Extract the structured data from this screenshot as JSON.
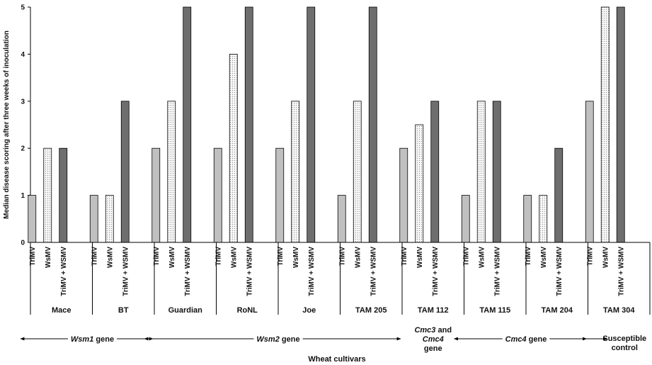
{
  "chart_data": {
    "type": "bar",
    "ylabel": "Median disease scoring after three weeks of inoculation",
    "xlabel": "Wheat cultivars",
    "ylim": [
      0,
      5
    ],
    "yticks": [
      0,
      1,
      2,
      3,
      4,
      5
    ],
    "grid": false,
    "categories": [
      "Mace",
      "BT",
      "Guardian",
      "RoNL",
      "Joe",
      "TAM 205",
      "TAM 112",
      "TAM 115",
      "TAM 204",
      "TAM 304"
    ],
    "series": [
      {
        "name": "TriMV",
        "fill": "#c0c0c0",
        "values": [
          1,
          1,
          2,
          2,
          2,
          1,
          2,
          1,
          1,
          3
        ]
      },
      {
        "name": "WsMV",
        "fill": "#f5f5f5",
        "pattern": "dotted",
        "values": [
          2,
          1,
          3,
          4,
          3,
          3,
          2.5,
          3,
          1,
          5
        ]
      },
      {
        "name": "TriMV + WSMV",
        "fill": "#6e6e6e",
        "values": [
          2,
          3,
          5,
          5,
          5,
          5,
          3,
          3,
          2,
          5
        ]
      }
    ],
    "gene_groups": [
      {
        "prefix": "",
        "gene": "Wsm1",
        "suffix": " gene",
        "categories": [
          "Mace",
          "BT"
        ]
      },
      {
        "prefix": "",
        "gene": "Wsm2",
        "suffix": " gene",
        "categories": [
          "Guardian",
          "RoNL",
          "Joe",
          "TAM 205"
        ]
      },
      {
        "lines": [
          "Cmc3 and",
          "Cmc4",
          "gene"
        ],
        "categories": [
          "TAM 112"
        ]
      },
      {
        "prefix": "",
        "gene": "Cmc4",
        "suffix": " gene",
        "categories": [
          "TAM 115",
          "TAM 204"
        ]
      },
      {
        "lines": [
          "Susceptible",
          "control"
        ],
        "categories": [
          "TAM 304"
        ]
      }
    ],
    "colors": {
      "axis": "#000000",
      "bar_stroke": "#000000",
      "dots": "#8a8a8a"
    }
  }
}
